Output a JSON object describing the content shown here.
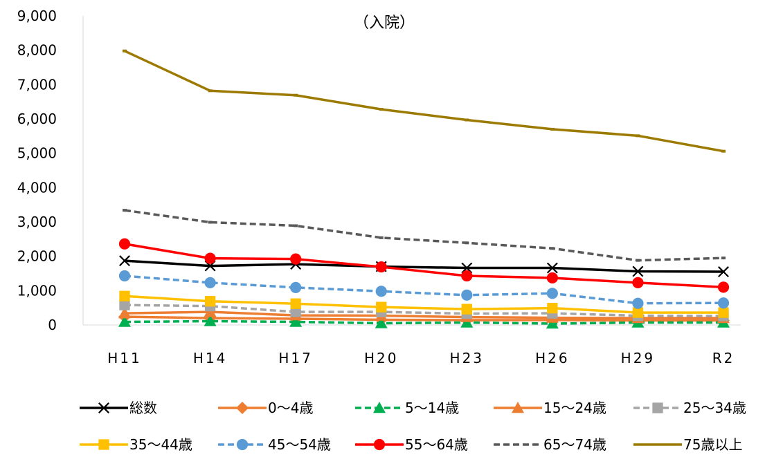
{
  "chart_data": {
    "type": "line",
    "title": "（入院）",
    "xlabel": "",
    "ylabel": "",
    "ylim": [
      0,
      9000
    ],
    "yticks": [
      0,
      1000,
      2000,
      3000,
      4000,
      5000,
      6000,
      7000,
      8000,
      9000
    ],
    "ytick_labels": [
      "0",
      "1,000",
      "2,000",
      "3,000",
      "4,000",
      "5,000",
      "6,000",
      "7,000",
      "8,000",
      "9,000"
    ],
    "categories": [
      "H11",
      "H14",
      "H17",
      "H20",
      "H23",
      "H26",
      "H29",
      "R2"
    ],
    "grid": false,
    "legend_position": "bottom",
    "series": [
      {
        "name": "総数",
        "color": "#000000",
        "dash": "solid",
        "marker": "x",
        "values": [
          1870,
          1720,
          1770,
          1700,
          1660,
          1660,
          1560,
          1550
        ]
      },
      {
        "name": "0〜4歳",
        "color": "#ED7D31",
        "dash": "solid",
        "marker": "diamond",
        "values": [
          240,
          200,
          180,
          150,
          140,
          140,
          130,
          130
        ]
      },
      {
        "name": "5〜14歳",
        "color": "#00B050",
        "dash": "dashed",
        "marker": "triangle",
        "values": [
          90,
          110,
          90,
          50,
          70,
          40,
          70,
          70
        ]
      },
      {
        "name": "15〜24歳",
        "color": "#ED7D31",
        "dash": "solid",
        "marker": "triangle",
        "values": [
          340,
          380,
          280,
          270,
          230,
          210,
          200,
          200
        ]
      },
      {
        "name": "25〜34歳",
        "color": "#A5A5A5",
        "dash": "dashed",
        "marker": "square",
        "values": [
          580,
          550,
          380,
          380,
          330,
          340,
          270,
          260
        ]
      },
      {
        "name": "35〜44歳",
        "color": "#FFC000",
        "dash": "solid",
        "marker": "square",
        "values": [
          840,
          690,
          620,
          520,
          460,
          490,
          360,
          360
        ]
      },
      {
        "name": "45〜54歳",
        "color": "#5B9BD5",
        "dash": "dashed",
        "marker": "circle",
        "values": [
          1430,
          1230,
          1090,
          980,
          870,
          920,
          630,
          640
        ]
      },
      {
        "name": "55〜64歳",
        "color": "#FF0000",
        "dash": "solid",
        "marker": "circle",
        "values": [
          2360,
          1940,
          1920,
          1690,
          1430,
          1370,
          1230,
          1100
        ]
      },
      {
        "name": "65〜74歳",
        "color": "#595959",
        "dash": "dashed",
        "marker": "none",
        "values": [
          3340,
          2990,
          2890,
          2540,
          2390,
          2230,
          1880,
          1950
        ]
      },
      {
        "name": "75歳以上",
        "color": "#9C7A00",
        "dash": "solid",
        "marker": "none",
        "values": [
          7980,
          6820,
          6690,
          6280,
          5970,
          5700,
          5510,
          5060
        ]
      }
    ]
  }
}
